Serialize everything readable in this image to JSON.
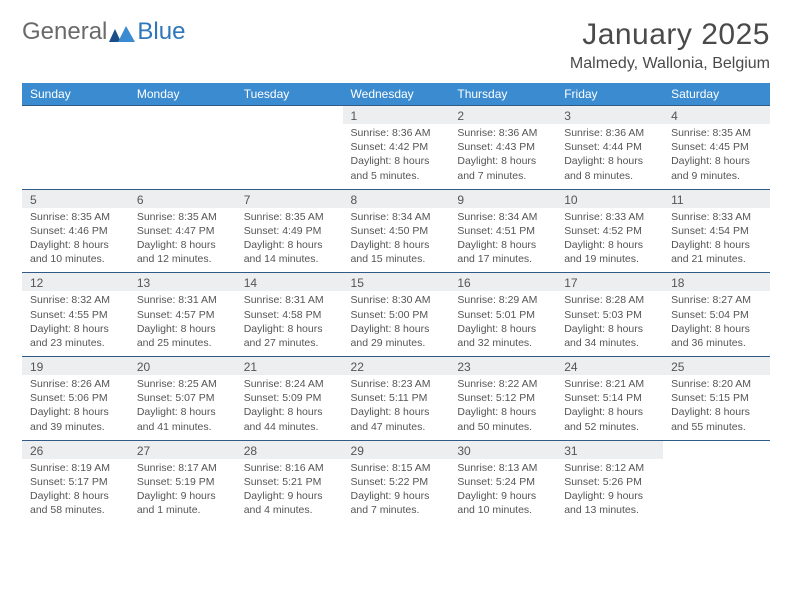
{
  "logo": {
    "text1": "General",
    "text2": "Blue"
  },
  "title": {
    "month": "January 2025",
    "location": "Malmedy, Wallonia, Belgium"
  },
  "colors": {
    "header_bg": "#3b8bd0",
    "header_text": "#ffffff",
    "daynum_bg": "#eceeef",
    "row_border": "#2f5b86",
    "body_text": "#555555",
    "logo_gray": "#6a6a6a",
    "logo_blue": "#2f77b8"
  },
  "calendar": {
    "day_headers": [
      "Sunday",
      "Monday",
      "Tuesday",
      "Wednesday",
      "Thursday",
      "Friday",
      "Saturday"
    ],
    "weeks": [
      {
        "numbers": [
          "",
          "",
          "",
          "1",
          "2",
          "3",
          "4"
        ],
        "cells": [
          null,
          null,
          null,
          {
            "sunrise": "Sunrise: 8:36 AM",
            "sunset": "Sunset: 4:42 PM",
            "day1": "Daylight: 8 hours",
            "day2": "and 5 minutes."
          },
          {
            "sunrise": "Sunrise: 8:36 AM",
            "sunset": "Sunset: 4:43 PM",
            "day1": "Daylight: 8 hours",
            "day2": "and 7 minutes."
          },
          {
            "sunrise": "Sunrise: 8:36 AM",
            "sunset": "Sunset: 4:44 PM",
            "day1": "Daylight: 8 hours",
            "day2": "and 8 minutes."
          },
          {
            "sunrise": "Sunrise: 8:35 AM",
            "sunset": "Sunset: 4:45 PM",
            "day1": "Daylight: 8 hours",
            "day2": "and 9 minutes."
          }
        ]
      },
      {
        "numbers": [
          "5",
          "6",
          "7",
          "8",
          "9",
          "10",
          "11"
        ],
        "cells": [
          {
            "sunrise": "Sunrise: 8:35 AM",
            "sunset": "Sunset: 4:46 PM",
            "day1": "Daylight: 8 hours",
            "day2": "and 10 minutes."
          },
          {
            "sunrise": "Sunrise: 8:35 AM",
            "sunset": "Sunset: 4:47 PM",
            "day1": "Daylight: 8 hours",
            "day2": "and 12 minutes."
          },
          {
            "sunrise": "Sunrise: 8:35 AM",
            "sunset": "Sunset: 4:49 PM",
            "day1": "Daylight: 8 hours",
            "day2": "and 14 minutes."
          },
          {
            "sunrise": "Sunrise: 8:34 AM",
            "sunset": "Sunset: 4:50 PM",
            "day1": "Daylight: 8 hours",
            "day2": "and 15 minutes."
          },
          {
            "sunrise": "Sunrise: 8:34 AM",
            "sunset": "Sunset: 4:51 PM",
            "day1": "Daylight: 8 hours",
            "day2": "and 17 minutes."
          },
          {
            "sunrise": "Sunrise: 8:33 AM",
            "sunset": "Sunset: 4:52 PM",
            "day1": "Daylight: 8 hours",
            "day2": "and 19 minutes."
          },
          {
            "sunrise": "Sunrise: 8:33 AM",
            "sunset": "Sunset: 4:54 PM",
            "day1": "Daylight: 8 hours",
            "day2": "and 21 minutes."
          }
        ]
      },
      {
        "numbers": [
          "12",
          "13",
          "14",
          "15",
          "16",
          "17",
          "18"
        ],
        "cells": [
          {
            "sunrise": "Sunrise: 8:32 AM",
            "sunset": "Sunset: 4:55 PM",
            "day1": "Daylight: 8 hours",
            "day2": "and 23 minutes."
          },
          {
            "sunrise": "Sunrise: 8:31 AM",
            "sunset": "Sunset: 4:57 PM",
            "day1": "Daylight: 8 hours",
            "day2": "and 25 minutes."
          },
          {
            "sunrise": "Sunrise: 8:31 AM",
            "sunset": "Sunset: 4:58 PM",
            "day1": "Daylight: 8 hours",
            "day2": "and 27 minutes."
          },
          {
            "sunrise": "Sunrise: 8:30 AM",
            "sunset": "Sunset: 5:00 PM",
            "day1": "Daylight: 8 hours",
            "day2": "and 29 minutes."
          },
          {
            "sunrise": "Sunrise: 8:29 AM",
            "sunset": "Sunset: 5:01 PM",
            "day1": "Daylight: 8 hours",
            "day2": "and 32 minutes."
          },
          {
            "sunrise": "Sunrise: 8:28 AM",
            "sunset": "Sunset: 5:03 PM",
            "day1": "Daylight: 8 hours",
            "day2": "and 34 minutes."
          },
          {
            "sunrise": "Sunrise: 8:27 AM",
            "sunset": "Sunset: 5:04 PM",
            "day1": "Daylight: 8 hours",
            "day2": "and 36 minutes."
          }
        ]
      },
      {
        "numbers": [
          "19",
          "20",
          "21",
          "22",
          "23",
          "24",
          "25"
        ],
        "cells": [
          {
            "sunrise": "Sunrise: 8:26 AM",
            "sunset": "Sunset: 5:06 PM",
            "day1": "Daylight: 8 hours",
            "day2": "and 39 minutes."
          },
          {
            "sunrise": "Sunrise: 8:25 AM",
            "sunset": "Sunset: 5:07 PM",
            "day1": "Daylight: 8 hours",
            "day2": "and 41 minutes."
          },
          {
            "sunrise": "Sunrise: 8:24 AM",
            "sunset": "Sunset: 5:09 PM",
            "day1": "Daylight: 8 hours",
            "day2": "and 44 minutes."
          },
          {
            "sunrise": "Sunrise: 8:23 AM",
            "sunset": "Sunset: 5:11 PM",
            "day1": "Daylight: 8 hours",
            "day2": "and 47 minutes."
          },
          {
            "sunrise": "Sunrise: 8:22 AM",
            "sunset": "Sunset: 5:12 PM",
            "day1": "Daylight: 8 hours",
            "day2": "and 50 minutes."
          },
          {
            "sunrise": "Sunrise: 8:21 AM",
            "sunset": "Sunset: 5:14 PM",
            "day1": "Daylight: 8 hours",
            "day2": "and 52 minutes."
          },
          {
            "sunrise": "Sunrise: 8:20 AM",
            "sunset": "Sunset: 5:15 PM",
            "day1": "Daylight: 8 hours",
            "day2": "and 55 minutes."
          }
        ]
      },
      {
        "numbers": [
          "26",
          "27",
          "28",
          "29",
          "30",
          "31",
          ""
        ],
        "cells": [
          {
            "sunrise": "Sunrise: 8:19 AM",
            "sunset": "Sunset: 5:17 PM",
            "day1": "Daylight: 8 hours",
            "day2": "and 58 minutes."
          },
          {
            "sunrise": "Sunrise: 8:17 AM",
            "sunset": "Sunset: 5:19 PM",
            "day1": "Daylight: 9 hours",
            "day2": "and 1 minute."
          },
          {
            "sunrise": "Sunrise: 8:16 AM",
            "sunset": "Sunset: 5:21 PM",
            "day1": "Daylight: 9 hours",
            "day2": "and 4 minutes."
          },
          {
            "sunrise": "Sunrise: 8:15 AM",
            "sunset": "Sunset: 5:22 PM",
            "day1": "Daylight: 9 hours",
            "day2": "and 7 minutes."
          },
          {
            "sunrise": "Sunrise: 8:13 AM",
            "sunset": "Sunset: 5:24 PM",
            "day1": "Daylight: 9 hours",
            "day2": "and 10 minutes."
          },
          {
            "sunrise": "Sunrise: 8:12 AM",
            "sunset": "Sunset: 5:26 PM",
            "day1": "Daylight: 9 hours",
            "day2": "and 13 minutes."
          },
          null
        ]
      }
    ]
  }
}
